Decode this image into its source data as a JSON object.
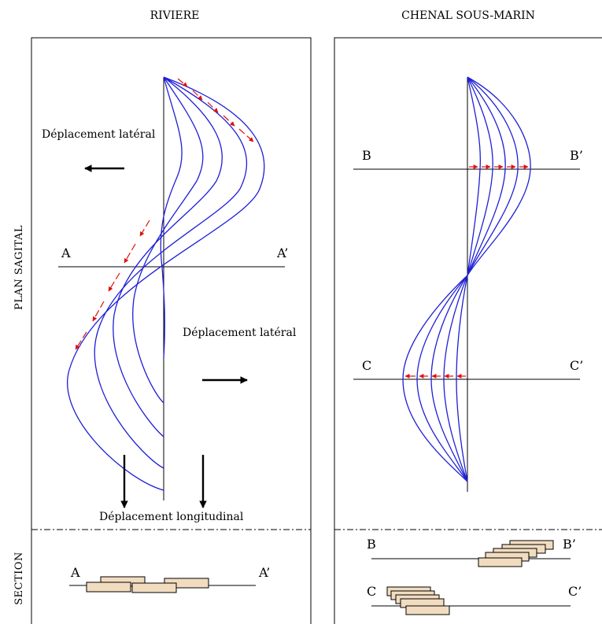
{
  "titles": {
    "left": "RIVIERE",
    "right": "CHENAL SOUS-MARIN"
  },
  "side_labels": {
    "plan": "PLAN SAGITAL",
    "section": "SECTION"
  },
  "riviere": {
    "lateral_left": "Déplacement latéral",
    "lateral_right": "Déplacement latéral",
    "longitudinal": "Déplacement longitudinal",
    "line_a": "A",
    "line_a_prime": "A’",
    "section_a": "A",
    "section_a_prime": "A’"
  },
  "chenal": {
    "line_b": "B",
    "line_b_prime": "B’",
    "line_c": "C",
    "line_c_prime": "C’",
    "section_b": "B",
    "section_b_prime": "B’",
    "section_c": "C",
    "section_c_prime": "C’"
  },
  "colors": {
    "channel": "#1f1fd6",
    "migration_arrow": "#e01010",
    "sediment_fill": "#f2dcc0",
    "line": "#000000"
  }
}
